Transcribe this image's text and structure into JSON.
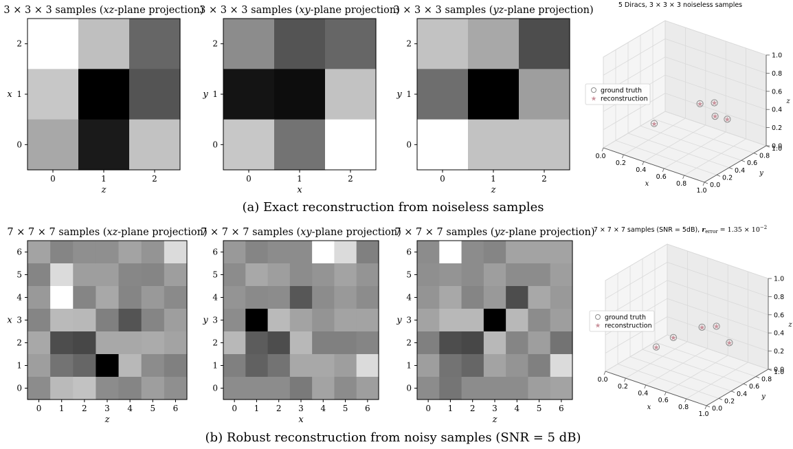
{
  "figure": {
    "caption_a": "(a) Exact reconstruction from noiseless samples",
    "caption_b": "(b) Robust reconstruction from noisy samples (SNR = 5 dB)"
  },
  "chart_data": [
    {
      "type": "heatmap",
      "id": "a_xz",
      "title": "3 × 3 × 3 samples (xz-plane projection)",
      "xlabel": "z",
      "ylabel": "x",
      "xticks": [
        "0",
        "1",
        "2"
      ],
      "yticks": [
        "0",
        "1",
        "2"
      ],
      "colormap": "gray",
      "values_top_to_bottom": [
        [
          1.0,
          0.75,
          0.4
        ],
        [
          0.78,
          0.0,
          0.33
        ],
        [
          0.66,
          0.1,
          0.76
        ]
      ]
    },
    {
      "type": "heatmap",
      "id": "a_xy",
      "title": "3 × 3 × 3 samples (xy-plane projection)",
      "xlabel": "x",
      "ylabel": "y",
      "xticks": [
        "0",
        "1",
        "2"
      ],
      "yticks": [
        "0",
        "1",
        "2"
      ],
      "colormap": "gray",
      "values_top_to_bottom": [
        [
          0.55,
          0.33,
          0.4
        ],
        [
          0.08,
          0.05,
          0.76
        ],
        [
          0.78,
          0.45,
          1.0
        ]
      ]
    },
    {
      "type": "heatmap",
      "id": "a_yz",
      "title": "3 × 3 × 3 samples (yz-plane projection)",
      "xlabel": "z",
      "ylabel": "y",
      "xticks": [
        "0",
        "1",
        "2"
      ],
      "yticks": [
        "0",
        "1",
        "2"
      ],
      "colormap": "gray",
      "values_top_to_bottom": [
        [
          0.76,
          0.66,
          0.3
        ],
        [
          0.43,
          0.0,
          0.62
        ],
        [
          1.0,
          0.76,
          0.76
        ]
      ]
    },
    {
      "type": "scatter",
      "id": "a_3d",
      "title": "5 Diracs, 3 × 3 × 3 noiseless samples",
      "xlabel": "x",
      "ylabel": "y",
      "zlabel": "z",
      "xticks": [
        "0.0",
        "0.2",
        "0.4",
        "0.6",
        "0.8",
        "1.0"
      ],
      "yticks": [
        "0.0",
        "0.2",
        "0.4",
        "0.6",
        "0.8",
        "1.0"
      ],
      "zticks": [
        "0.0",
        "0.2",
        "0.4",
        "0.6",
        "0.8",
        "1.0"
      ],
      "xlim": [
        0,
        1
      ],
      "ylim": [
        0,
        1
      ],
      "zlim": [
        0,
        1
      ],
      "legend_position": "left",
      "series": [
        {
          "name": "ground truth",
          "marker": "circle",
          "color": "#8a8a8a",
          "points": [
            [
              0.62,
              0.55,
              0.5
            ],
            [
              0.72,
              0.62,
              0.52
            ],
            [
              0.86,
              0.6,
              0.4
            ],
            [
              0.35,
              0.25,
              0.3
            ],
            [
              0.8,
              0.5,
              0.45
            ]
          ]
        },
        {
          "name": "reconstruction",
          "marker": "star",
          "color": "#c9909a",
          "points": [
            [
              0.62,
              0.55,
              0.5
            ],
            [
              0.72,
              0.62,
              0.52
            ],
            [
              0.86,
              0.6,
              0.4
            ],
            [
              0.35,
              0.25,
              0.3
            ],
            [
              0.8,
              0.5,
              0.45
            ]
          ]
        }
      ]
    },
    {
      "type": "heatmap",
      "id": "b_xz",
      "title": "7 × 7 × 7 samples (xz-plane projection)",
      "xlabel": "z",
      "ylabel": "x",
      "xticks": [
        "0",
        "1",
        "2",
        "3",
        "4",
        "5",
        "6"
      ],
      "yticks": [
        "0",
        "1",
        "2",
        "3",
        "4",
        "5",
        "6"
      ],
      "colormap": "gray",
      "values_top_to_bottom": [
        [
          0.64,
          0.52,
          0.56,
          0.56,
          0.64,
          0.58,
          0.86
        ],
        [
          0.52,
          0.86,
          0.62,
          0.62,
          0.53,
          0.52,
          0.62
        ],
        [
          0.6,
          1.0,
          0.52,
          0.66,
          0.52,
          0.6,
          0.54
        ],
        [
          0.52,
          0.73,
          0.72,
          0.5,
          0.33,
          0.52,
          0.62
        ],
        [
          0.66,
          0.3,
          0.28,
          0.66,
          0.66,
          0.67,
          0.64
        ],
        [
          0.62,
          0.45,
          0.4,
          0.0,
          0.72,
          0.55,
          0.5
        ],
        [
          0.55,
          0.73,
          0.76,
          0.55,
          0.52,
          0.62,
          0.56
        ]
      ]
    },
    {
      "type": "heatmap",
      "id": "b_xy",
      "title": "7 × 7 × 7 samples (xy-plane projection)",
      "xlabel": "x",
      "ylabel": "y",
      "xticks": [
        "0",
        "1",
        "2",
        "3",
        "4",
        "5",
        "6"
      ],
      "yticks": [
        "0",
        "1",
        "2",
        "3",
        "4",
        "5",
        "6"
      ],
      "colormap": "gray",
      "values_top_to_bottom": [
        [
          0.6,
          0.52,
          0.55,
          0.55,
          1.0,
          0.86,
          0.5
        ],
        [
          0.55,
          0.66,
          0.62,
          0.55,
          0.58,
          0.64,
          0.58
        ],
        [
          0.58,
          0.54,
          0.55,
          0.34,
          0.55,
          0.6,
          0.55
        ],
        [
          0.55,
          0.0,
          0.73,
          0.64,
          0.58,
          0.64,
          0.64
        ],
        [
          0.72,
          0.36,
          0.3,
          0.72,
          0.5,
          0.5,
          0.52
        ],
        [
          0.5,
          0.38,
          0.45,
          0.66,
          0.66,
          0.62,
          0.86
        ],
        [
          0.55,
          0.55,
          0.55,
          0.48,
          0.64,
          0.55,
          0.62
        ]
      ]
    },
    {
      "type": "heatmap",
      "id": "b_yz",
      "title": "7 × 7 × 7 samples (yz-plane projection)",
      "xlabel": "z",
      "ylabel": "y",
      "xticks": [
        "0",
        "1",
        "2",
        "3",
        "4",
        "5",
        "6"
      ],
      "yticks": [
        "0",
        "1",
        "2",
        "3",
        "4",
        "5",
        "6"
      ],
      "colormap": "gray",
      "values_top_to_bottom": [
        [
          0.55,
          1.0,
          0.55,
          0.52,
          0.64,
          0.64,
          0.64
        ],
        [
          0.56,
          0.58,
          0.55,
          0.62,
          0.55,
          0.55,
          0.62
        ],
        [
          0.58,
          0.66,
          0.52,
          0.6,
          0.3,
          0.66,
          0.6
        ],
        [
          0.64,
          0.72,
          0.72,
          0.0,
          0.72,
          0.55,
          0.62
        ],
        [
          0.5,
          0.3,
          0.28,
          0.72,
          0.52,
          0.62,
          0.45
        ],
        [
          0.62,
          0.45,
          0.4,
          0.64,
          0.58,
          0.5,
          0.86
        ],
        [
          0.55,
          0.46,
          0.55,
          0.55,
          0.55,
          0.62,
          0.64
        ]
      ]
    },
    {
      "type": "scatter",
      "id": "b_3d",
      "title": "7 × 7 × 7 samples (SNR = 5dB), r_error = 1.35 × 10^-2",
      "title_main": "7 × 7 × 7 samples (SNR = 5dB), ",
      "title_var": "r",
      "title_sub": "error",
      "title_eq": " = 1.35 × 10",
      "title_exp": "−2",
      "xlabel": "x",
      "ylabel": "y",
      "zlabel": "z",
      "xticks": [
        "0.0",
        "0.2",
        "0.4",
        "0.6",
        "0.8",
        "1.0"
      ],
      "yticks": [
        "0.0",
        "0.2",
        "0.4",
        "0.6",
        "0.8",
        "1.0"
      ],
      "zticks": [
        "0.0",
        "0.2",
        "0.4",
        "0.6",
        "0.8",
        "1.0"
      ],
      "xlim": [
        0,
        1
      ],
      "ylim": [
        0,
        1
      ],
      "zlim": [
        0,
        1
      ],
      "legend_position": "left",
      "series": [
        {
          "name": "ground truth",
          "marker": "circle",
          "color": "#8a8a8a",
          "points": [
            [
              0.62,
              0.55,
              0.5
            ],
            [
              0.72,
              0.62,
              0.52
            ],
            [
              0.86,
              0.6,
              0.4
            ],
            [
              0.35,
              0.25,
              0.3
            ],
            [
              0.55,
              0.2,
              0.5
            ]
          ]
        },
        {
          "name": "reconstruction",
          "marker": "star",
          "color": "#c9909a",
          "points": [
            [
              0.62,
              0.55,
              0.5
            ],
            [
              0.72,
              0.62,
              0.52
            ],
            [
              0.86,
              0.6,
              0.4
            ],
            [
              0.35,
              0.25,
              0.3
            ],
            [
              0.55,
              0.2,
              0.5
            ]
          ]
        }
      ]
    }
  ]
}
